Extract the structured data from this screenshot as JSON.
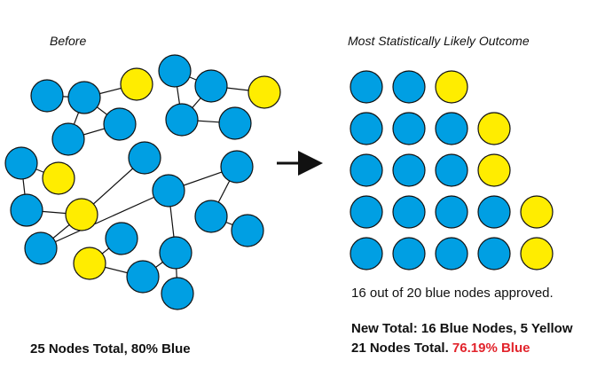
{
  "colors": {
    "blue": "#009fe3",
    "yellow": "#ffed00",
    "stroke": "#111111",
    "highlight": "#e2242c"
  },
  "before": {
    "title": "Before",
    "summary": "25 Nodes Total, 80% Blue",
    "nodes": [
      {
        "id": "b1",
        "color": "blue"
      },
      {
        "id": "b2",
        "color": "blue"
      },
      {
        "id": "b3",
        "color": "yellow"
      },
      {
        "id": "b4",
        "color": "blue"
      },
      {
        "id": "b5",
        "color": "blue"
      },
      {
        "id": "b6",
        "color": "blue"
      },
      {
        "id": "b7",
        "color": "blue"
      },
      {
        "id": "b8",
        "color": "yellow"
      },
      {
        "id": "b9",
        "color": "blue"
      },
      {
        "id": "b10",
        "color": "blue"
      },
      {
        "id": "b11",
        "color": "blue"
      },
      {
        "id": "b12",
        "color": "yellow"
      },
      {
        "id": "b13",
        "color": "blue"
      },
      {
        "id": "b14",
        "color": "yellow"
      },
      {
        "id": "b15",
        "color": "blue"
      },
      {
        "id": "b16",
        "color": "blue"
      },
      {
        "id": "b17",
        "color": "blue"
      },
      {
        "id": "b18",
        "color": "blue"
      },
      {
        "id": "b19",
        "color": "blue"
      },
      {
        "id": "b20",
        "color": "blue"
      },
      {
        "id": "b21",
        "color": "blue"
      },
      {
        "id": "b22",
        "color": "yellow"
      },
      {
        "id": "b23",
        "color": "blue"
      },
      {
        "id": "b24",
        "color": "blue"
      },
      {
        "id": "b25",
        "color": "blue"
      }
    ],
    "edges": [
      [
        "b1",
        "b2"
      ],
      [
        "b2",
        "b3"
      ],
      [
        "b2",
        "b4"
      ],
      [
        "b2",
        "b5"
      ],
      [
        "b4",
        "b5"
      ],
      [
        "b6",
        "b7"
      ],
      [
        "b7",
        "b8"
      ],
      [
        "b7",
        "b9"
      ],
      [
        "b6",
        "b9"
      ],
      [
        "b9",
        "b10"
      ],
      [
        "b11",
        "b12"
      ],
      [
        "b11",
        "b13"
      ],
      [
        "b13",
        "b14"
      ],
      [
        "b14",
        "b15"
      ],
      [
        "b14",
        "b16"
      ],
      [
        "b17",
        "b18"
      ],
      [
        "b17",
        "b19"
      ],
      [
        "b19",
        "b20"
      ],
      [
        "b21",
        "b22"
      ],
      [
        "b22",
        "b23"
      ],
      [
        "b23",
        "b24"
      ],
      [
        "b24",
        "b25"
      ],
      [
        "b24",
        "b18"
      ],
      [
        "b18",
        "b15"
      ]
    ]
  },
  "after": {
    "title": "Most Statistically Likely Outcome",
    "rows": [
      [
        "blue",
        "blue",
        "yellow"
      ],
      [
        "blue",
        "blue",
        "blue",
        "yellow"
      ],
      [
        "blue",
        "blue",
        "blue",
        "yellow"
      ],
      [
        "blue",
        "blue",
        "blue",
        "blue",
        "yellow"
      ],
      [
        "blue",
        "blue",
        "blue",
        "blue",
        "yellow"
      ]
    ],
    "approved_note": "16 out of 20 blue nodes approved.",
    "summary_line1": "New Total: 16 Blue Nodes, 5 Yellow",
    "summary_line2_prefix": "21 Nodes Total. ",
    "summary_line2_highlight": "76.19% Blue"
  }
}
